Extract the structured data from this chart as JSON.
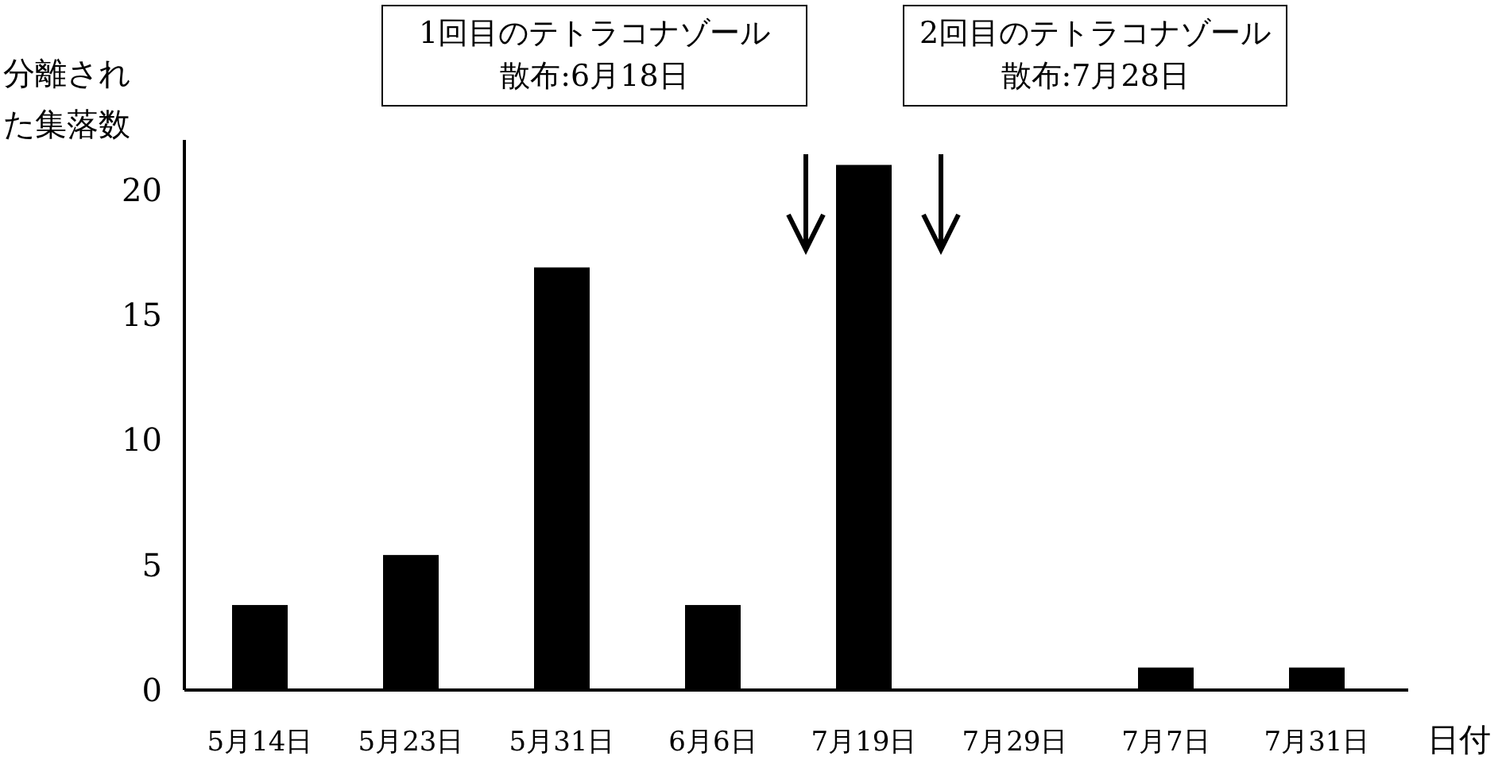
{
  "chart_data": {
    "type": "bar",
    "ylabel": "分離された集落数",
    "xlabel": "日付",
    "categories": [
      "5月14日",
      "5月23日",
      "5月31日",
      "6月6日",
      "7月19日",
      "7月29日",
      "7月7日",
      "7月31日"
    ],
    "values": [
      3.4,
      5.4,
      16.9,
      3.4,
      21,
      0,
      0.9,
      0.9
    ],
    "color": "#000000",
    "ylim": [
      0,
      22
    ],
    "yticks": [
      0,
      5,
      10,
      15,
      20
    ],
    "annotations": [
      "1回目のテトラコナゾール散布:6月18日",
      "2回目のテトラコナゾール散布:7月28日"
    ]
  }
}
